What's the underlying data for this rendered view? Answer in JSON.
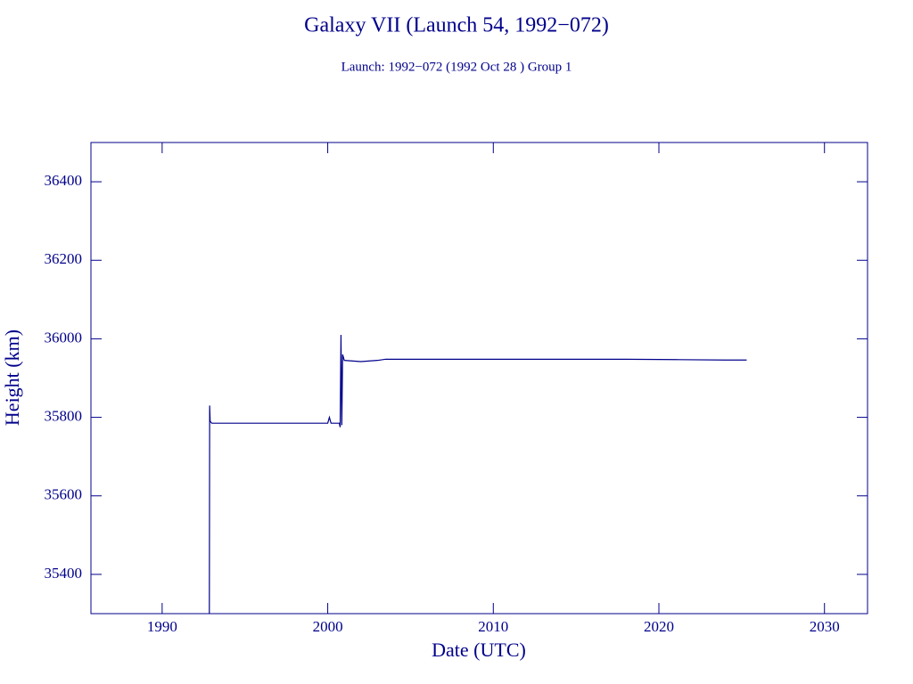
{
  "chart_data": {
    "type": "line",
    "title": "Galaxy VII (Launch 54, 1992−072)",
    "subtitle": "Launch: 1992−072  (1992 Oct 28 )  Group 1",
    "xlabel": "Date (UTC)",
    "ylabel": "Height (km)",
    "xlim": [
      1985.7,
      2032.6
    ],
    "ylim": [
      35300,
      36500
    ],
    "xticks": [
      1990,
      2000,
      2010,
      2020,
      2030
    ],
    "yticks": [
      35400,
      35600,
      35800,
      36000,
      36200,
      36400
    ],
    "color": "#00008b",
    "series": [
      {
        "name": "Height",
        "color": "#00008b",
        "x": [
          1992.85,
          1992.87,
          1992.9,
          1993.0,
          1995.0,
          2000.0,
          2000.1,
          2000.2,
          2000.7,
          2000.75,
          2000.8,
          2000.85,
          2000.9,
          2001.0,
          2002.0,
          2003.0,
          2003.5,
          2006.0,
          2009.0,
          2012.0,
          2015.0,
          2018.0,
          2021.0,
          2024.0,
          2025.3
        ],
        "values": [
          35300,
          35830,
          35790,
          35785,
          35785,
          35785,
          35800,
          35785,
          35785,
          35775,
          36010,
          35780,
          35960,
          35945,
          35942,
          35945,
          35948,
          35948,
          35948,
          35948,
          35948,
          35948,
          35947,
          35946,
          35946
        ]
      }
    ]
  }
}
